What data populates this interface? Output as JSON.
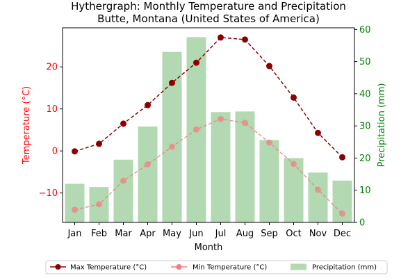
{
  "chart_data": {
    "type": "bar+line",
    "title": "Hythergraph: Monthly Temperature and Precipitation",
    "subtitle": "Butte, Montana (United States of America)",
    "xlabel": "Month",
    "ylabel_left": "Temperature (°C)",
    "ylabel_right": "Precipitation (mm)",
    "categories": [
      "Jan",
      "Feb",
      "Mar",
      "Apr",
      "May",
      "Jun",
      "Jul",
      "Aug",
      "Sep",
      "Oct",
      "Nov",
      "Dec"
    ],
    "ylim_left": [
      -17,
      29.3
    ],
    "yticks_left": [
      -10,
      0,
      10,
      20
    ],
    "ylim_right": [
      0,
      60.5
    ],
    "yticks_right": [
      0,
      10,
      20,
      30,
      40,
      50,
      60
    ],
    "grid": false,
    "legend_position": "bottom",
    "series": [
      {
        "name": "Max Temperature (°C)",
        "kind": "line",
        "axis": "left",
        "color": "#8b0000",
        "values": [
          -0.1,
          1.7,
          6.5,
          10.9,
          16.2,
          21.0,
          27.0,
          26.5,
          20.2,
          12.7,
          4.3,
          -1.5
        ]
      },
      {
        "name": "Min Temperature (°C)",
        "kind": "line",
        "axis": "left",
        "color": "#f08080",
        "values": [
          -14.0,
          -12.7,
          -7.1,
          -3.2,
          1.0,
          5.1,
          7.6,
          6.7,
          2.0,
          -3.1,
          -9.2,
          -14.9
        ]
      },
      {
        "name": "Precipitation (mm)",
        "kind": "bar",
        "axis": "right",
        "color": "#b2d9b2",
        "values": [
          12.0,
          11.0,
          19.5,
          29.8,
          53.0,
          57.6,
          34.3,
          34.5,
          25.6,
          20.0,
          15.5,
          13.0
        ]
      }
    ],
    "colors": {
      "left_axis": "#ff0000",
      "right_axis": "#008000"
    }
  }
}
